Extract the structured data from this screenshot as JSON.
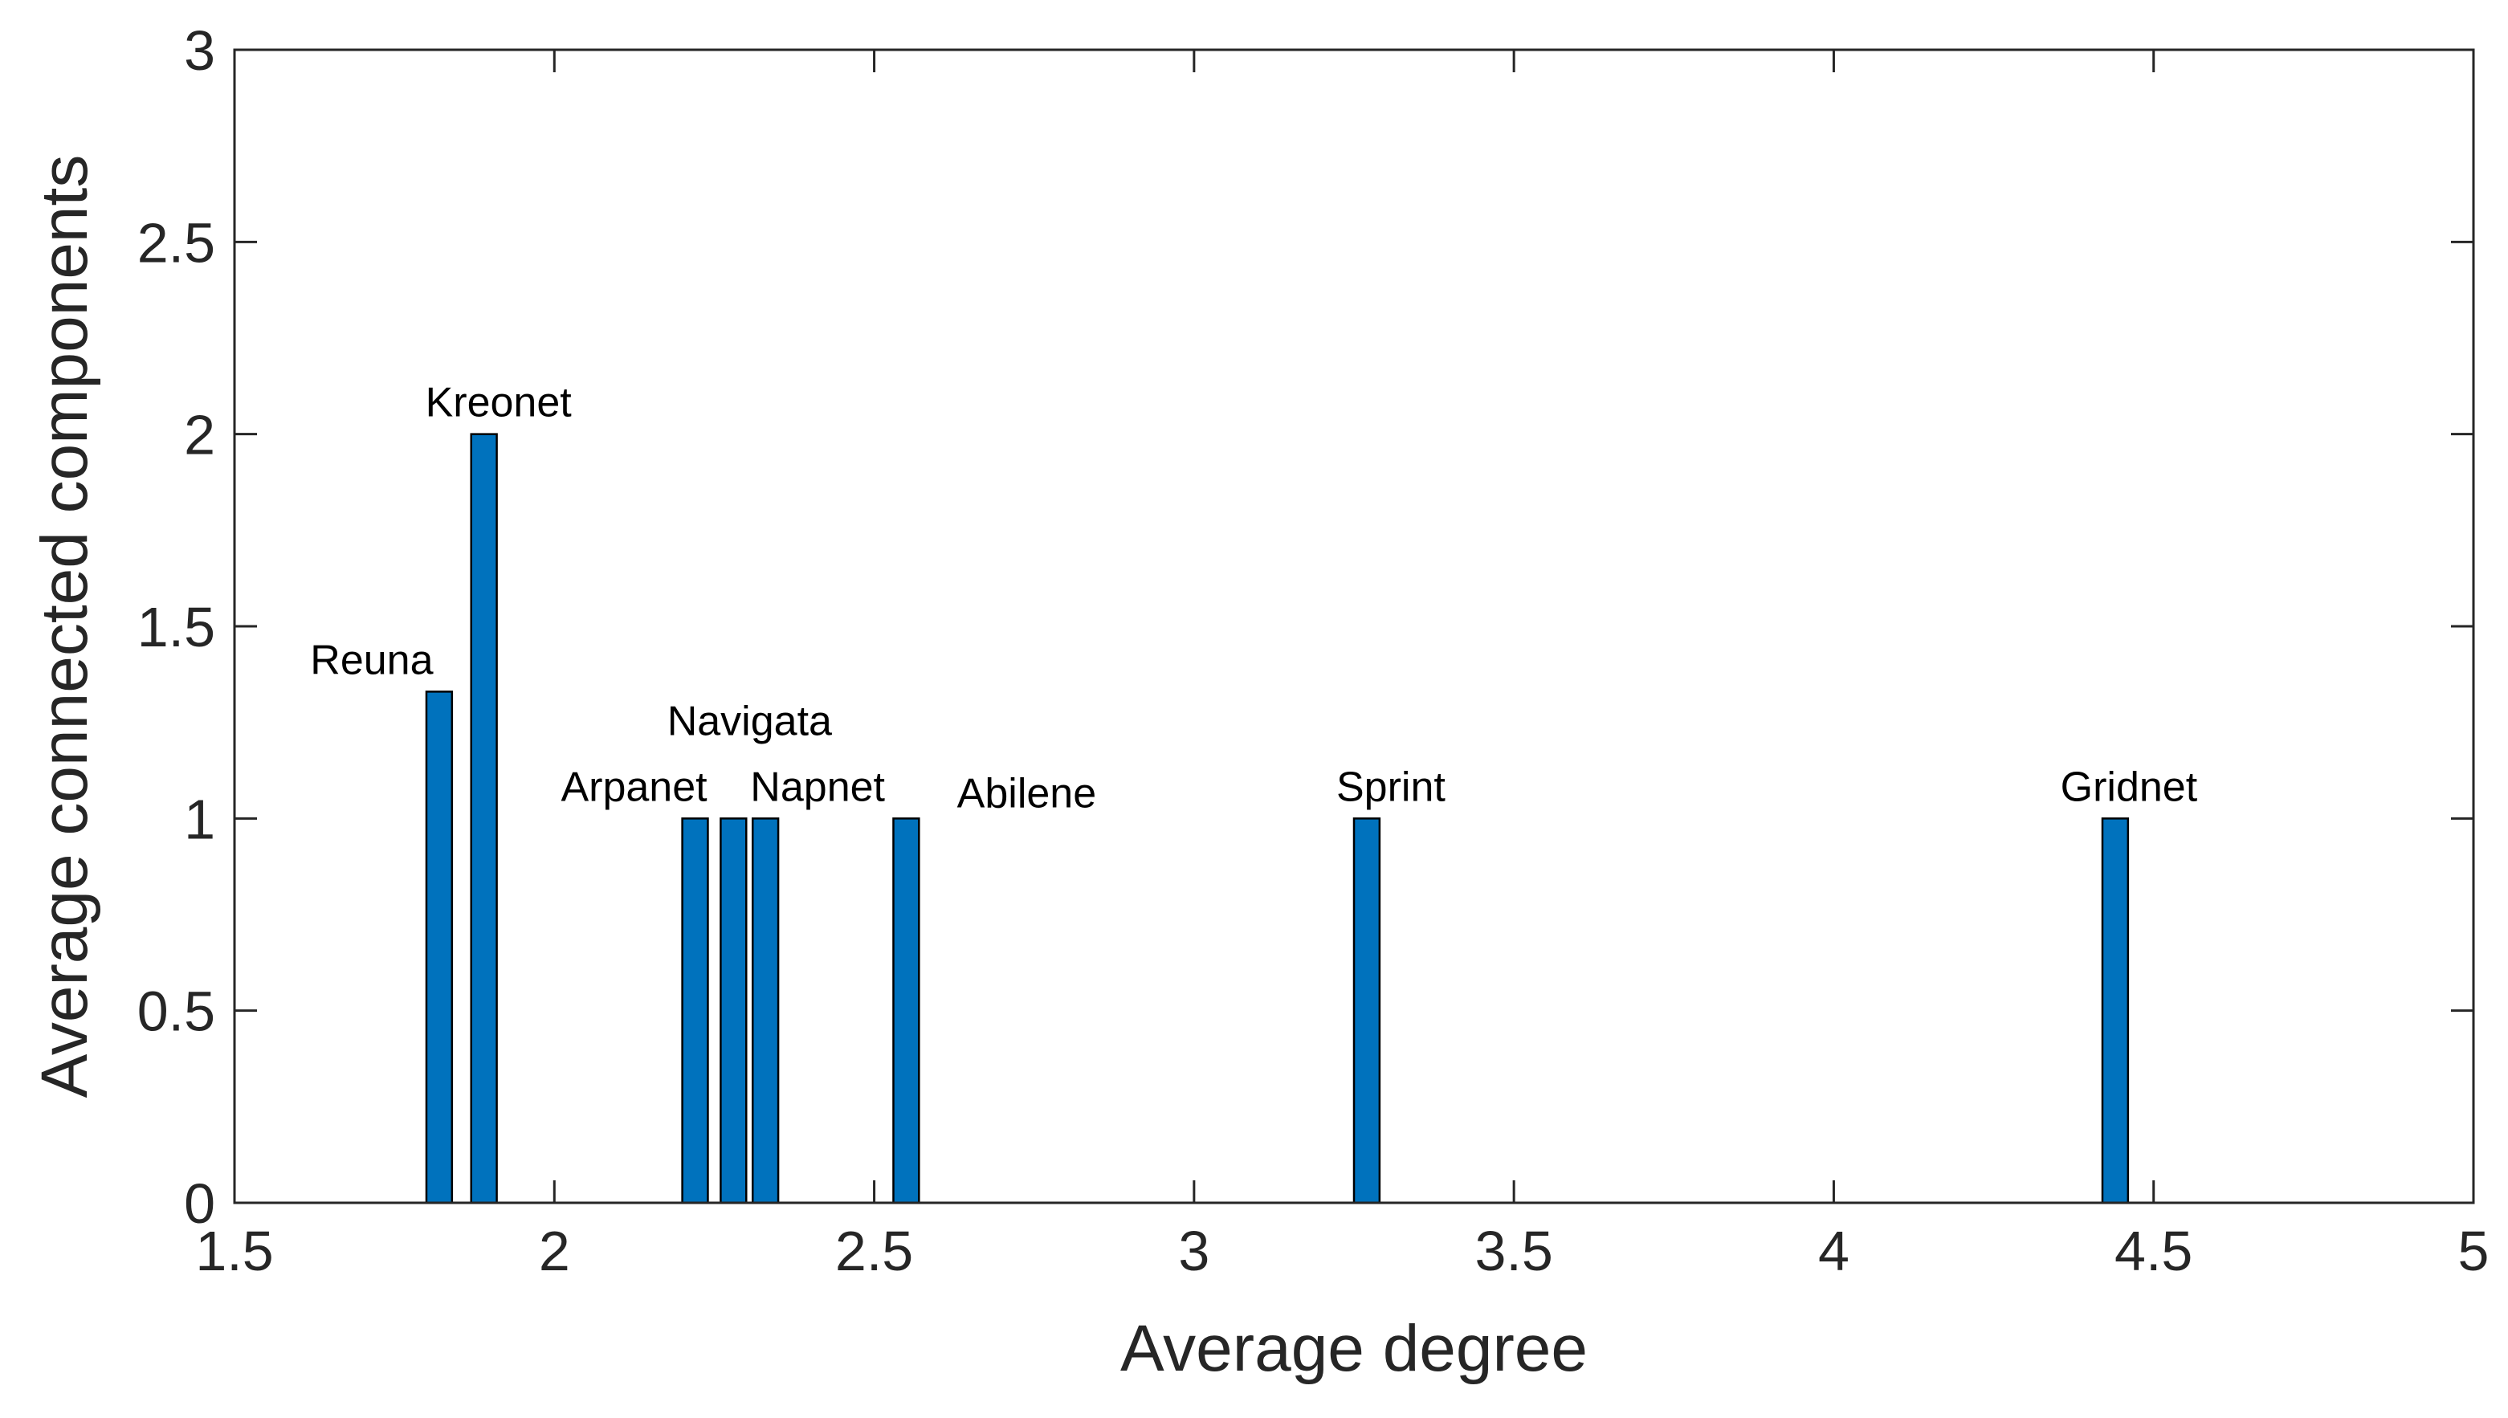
{
  "chart_data": {
    "type": "bar",
    "title": "",
    "xlabel": "Average degree",
    "ylabel": "Average connected components",
    "xlim": [
      1.5,
      5
    ],
    "ylim": [
      0,
      3
    ],
    "xticks": [
      1.5,
      2,
      2.5,
      3,
      3.5,
      4,
      4.5,
      5
    ],
    "xtick_labels": [
      "1.5",
      "2",
      "2.5",
      "3",
      "3.5",
      "4",
      "4.5",
      "5"
    ],
    "yticks": [
      0,
      0.5,
      1,
      1.5,
      2,
      2.5,
      3
    ],
    "ytick_labels": [
      "0",
      "0.5",
      "1",
      "1.5",
      "2",
      "2.5",
      "3"
    ],
    "bar_width": 0.04,
    "bar_color": "#0072BD",
    "bars": [
      {
        "name": "Reuna",
        "x": 1.82,
        "value": 1.33
      },
      {
        "name": "Kreonet",
        "x": 1.89,
        "value": 2.0
      },
      {
        "name": "Arpanet",
        "x": 2.22,
        "value": 1.0
      },
      {
        "name": "Navigata",
        "x": 2.28,
        "value": 1.0
      },
      {
        "name": "Napnet",
        "x": 2.33,
        "value": 1.0
      },
      {
        "name": "Abilene",
        "x": 2.55,
        "value": 1.0
      },
      {
        "name": "Sprint",
        "x": 3.27,
        "value": 1.0
      },
      {
        "name": "Gridnet",
        "x": 4.44,
        "value": 1.0
      }
    ]
  }
}
